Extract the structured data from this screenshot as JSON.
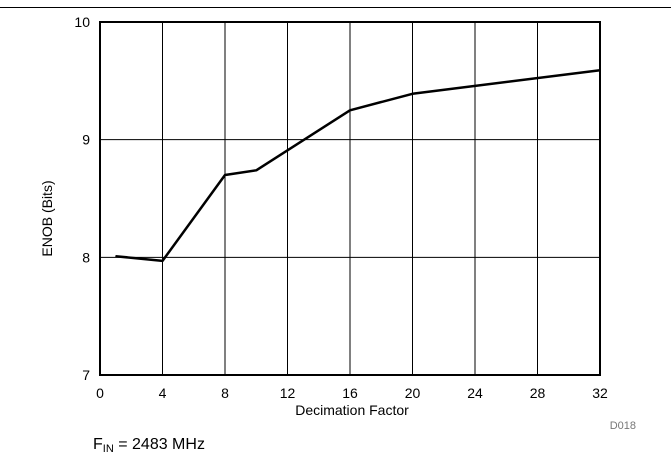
{
  "chart_data": {
    "type": "line",
    "x": [
      1,
      4,
      8,
      10,
      16,
      20,
      32
    ],
    "series": [
      {
        "values": [
          8.01,
          7.97,
          8.7,
          8.74,
          9.25,
          9.39,
          9.59
        ]
      }
    ],
    "xlabel": "Decimation Factor",
    "ylabel": "ENOB (Bits)",
    "xlim": [
      0,
      32
    ],
    "ylim": [
      7,
      10
    ],
    "xticks": [
      "0",
      "4",
      "8",
      "12",
      "16",
      "20",
      "24",
      "28",
      "32"
    ],
    "yticks": [
      "7",
      "8",
      "9",
      "10"
    ],
    "grid": true
  },
  "figure_id": "D018",
  "caption": {
    "symbol": "F",
    "subscript": "IN",
    "rest": " = 2483 MHz"
  },
  "colors": {
    "line": "#000000",
    "grid": "#000000"
  }
}
